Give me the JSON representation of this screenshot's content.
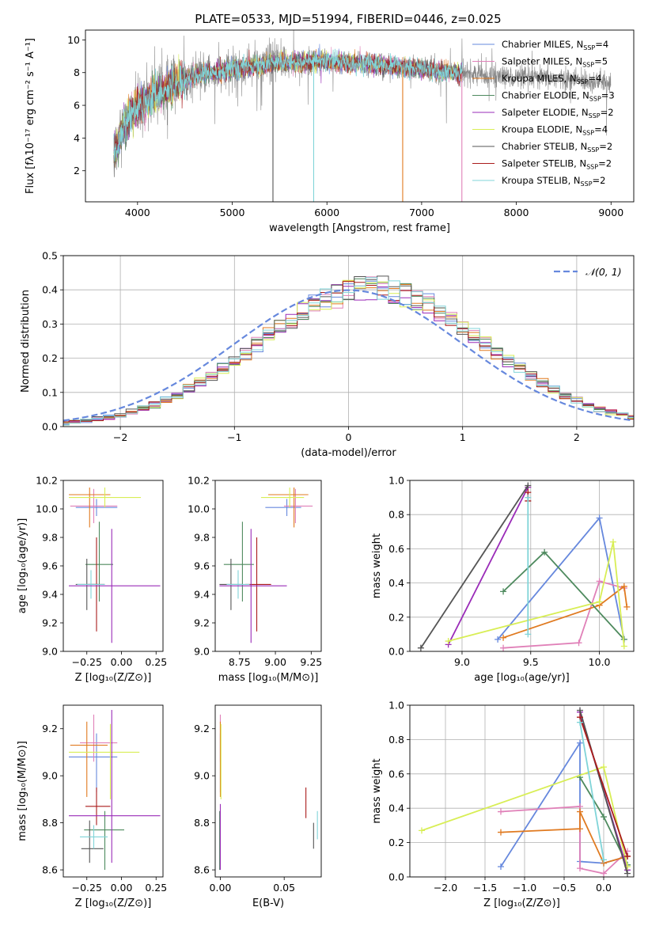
{
  "figure": {
    "title": "PLATE=0533, MJD=51994, FIBERID=0446, z=0.025"
  },
  "colors": {
    "Chabrier MILES": "#6688dd",
    "Salpeter MILES": "#e080b8",
    "Kroupa MILES": "#e07a20",
    "Chabrier ELODIE": "#4e8a5e",
    "Salpeter ELODIE": "#9a2bb8",
    "Kroupa ELODIE": "#d8ee55",
    "Chabrier STELIB": "#555555",
    "Salpeter STELIB": "#aa1c1c",
    "Kroupa STELIB": "#80d4d8",
    "gauss": "#6688dd",
    "observed_spectrum": "#888888",
    "grid": "#b0b0b0"
  },
  "chart_data": [
    {
      "id": "spectrum",
      "type": "line",
      "xlabel": "wavelength [Angstrom, rest frame]",
      "ylabel": "Flux [fλ10⁻¹⁷ erg cm⁻² s⁻¹ A⁻¹]",
      "xlim": [
        3450,
        9240
      ],
      "ylim": [
        0.1,
        10.6
      ],
      "xticks": [
        4000,
        5000,
        6000,
        7000,
        8000,
        9000
      ],
      "yticks": [
        2,
        4,
        6,
        8,
        10
      ],
      "grid": false,
      "legend_position": "top-right",
      "legend": [
        {
          "model": "Chabrier MILES",
          "nssp": "4"
        },
        {
          "model": "Salpeter MILES",
          "nssp": "5"
        },
        {
          "model": "Kroupa MILES",
          "nssp": "4"
        },
        {
          "model": "Chabrier ELODIE",
          "nssp": "3"
        },
        {
          "model": "Salpeter ELODIE",
          "nssp": "2"
        },
        {
          "model": "Kroupa ELODIE",
          "nssp": "4"
        },
        {
          "model": "Chabrier STELIB",
          "nssp": "2"
        },
        {
          "model": "Salpeter STELIB",
          "nssp": "2"
        },
        {
          "model": "Kroupa STELIB",
          "nssp": "2"
        }
      ],
      "continuum": [
        [
          3750,
          3.0
        ],
        [
          3850,
          4.6
        ],
        [
          3950,
          5.6
        ],
        [
          4100,
          6.4
        ],
        [
          4300,
          7.0
        ],
        [
          4500,
          7.6
        ],
        [
          4700,
          7.9
        ],
        [
          5000,
          8.2
        ],
        [
          5500,
          8.6
        ],
        [
          6000,
          8.7
        ],
        [
          6500,
          8.5
        ],
        [
          7000,
          8.2
        ],
        [
          7500,
          7.9
        ],
        [
          8000,
          7.7
        ],
        [
          8500,
          7.6
        ],
        [
          9000,
          7.4
        ]
      ],
      "model_range": [
        3750,
        7430
      ],
      "drops": [
        {
          "x": 5430,
          "series": "Chabrier STELIB"
        },
        {
          "x": 5860,
          "series": "Kroupa STELIB"
        },
        {
          "x": 6800,
          "series": "Kroupa MILES"
        },
        {
          "x": 7425,
          "series": "Salpeter MILES"
        }
      ]
    },
    {
      "id": "residuals",
      "type": "histogram",
      "xlabel": "(data-model)/error",
      "ylabel": "Normed distribution",
      "xlim": [
        -2.5,
        2.5
      ],
      "ylim": [
        0,
        0.5
      ],
      "xticks": [
        -2,
        -1,
        0,
        1,
        2
      ],
      "yticks": [
        0,
        0.1,
        0.2,
        0.3,
        0.4,
        0.5
      ],
      "grid": true,
      "legend_position": "top-right",
      "reference_curve": {
        "label": "𝒩(0, 1)",
        "mu": 0,
        "sigma": 1
      },
      "bin_width": 0.1
    },
    {
      "id": "z-age",
      "type": "errorbar",
      "xlabel": "Z [log₁₀(Z/Z⊙)]",
      "ylabel": "age  [log₁₀(age/yr)]",
      "xlim": [
        -0.42,
        0.3
      ],
      "ylim": [
        9.0,
        10.2
      ],
      "xticks": [
        -0.25,
        0.0,
        0.25
      ],
      "yticks": [
        9.0,
        9.2,
        9.4,
        9.6,
        9.8,
        10.0,
        10.2
      ],
      "points": [
        {
          "series": "Chabrier MILES",
          "x": -0.18,
          "xerr": [
            0.15,
            0.15
          ],
          "y": 10.01,
          "yerr": [
            0.06,
            0.06
          ]
        },
        {
          "series": "Salpeter MILES",
          "x": -0.2,
          "xerr": [
            0.17,
            0.17
          ],
          "y": 10.02,
          "yerr": [
            0.12,
            0.12
          ]
        },
        {
          "series": "Kroupa MILES",
          "x": -0.23,
          "xerr": [
            0.15,
            0.15
          ],
          "y": 10.1,
          "yerr": [
            0.23,
            0.05
          ]
        },
        {
          "series": "Kroupa ELODIE",
          "x": -0.12,
          "xerr": [
            0.26,
            0.26
          ],
          "y": 10.08,
          "yerr": [
            0.07,
            0.07
          ]
        },
        {
          "series": "Chabrier ELODIE",
          "x": -0.16,
          "xerr": [
            0.1,
            0.1
          ],
          "y": 9.61,
          "yerr": [
            0.26,
            0.3
          ]
        },
        {
          "series": "Salpeter STELIB",
          "x": -0.18,
          "xerr": [
            0.06,
            0.06
          ],
          "y": 9.47,
          "yerr": [
            0.33,
            0.33
          ]
        },
        {
          "series": "Chabrier STELIB",
          "x": -0.25,
          "xerr": [
            0.08,
            0.08
          ],
          "y": 9.47,
          "yerr": [
            0.18,
            0.18
          ]
        },
        {
          "series": "Kroupa STELIB",
          "x": -0.22,
          "xerr": [
            0.1,
            0.1
          ],
          "y": 9.47,
          "yerr": [
            0.1,
            0.1
          ]
        },
        {
          "series": "Salpeter ELODIE",
          "x": -0.07,
          "xerr": [
            0.31,
            0.35
          ],
          "y": 9.46,
          "yerr": [
            0.4,
            0.4
          ]
        }
      ]
    },
    {
      "id": "mass-age",
      "type": "errorbar",
      "xlabel": "mass [log₁₀(M/M⊙)]",
      "ylabel": "",
      "xlim": [
        8.58,
        9.32
      ],
      "ylim": [
        9.0,
        10.2
      ],
      "xticks": [
        8.75,
        9.0,
        9.25
      ],
      "yticks": [
        9.0,
        9.2,
        9.4,
        9.6,
        9.8,
        10.0,
        10.2
      ],
      "points": [
        {
          "series": "Chabrier MILES",
          "x": 9.08,
          "xerr": [
            0.15,
            0.1
          ],
          "y": 10.01,
          "yerr": [
            0.06,
            0.06
          ]
        },
        {
          "series": "Salpeter MILES",
          "x": 9.14,
          "xerr": [
            0.08,
            0.12
          ],
          "y": 10.02,
          "yerr": [
            0.12,
            0.12
          ]
        },
        {
          "series": "Kroupa MILES",
          "x": 9.13,
          "xerr": [
            0.18,
            0.1
          ],
          "y": 10.1,
          "yerr": [
            0.23,
            0.05
          ]
        },
        {
          "series": "Kroupa ELODIE",
          "x": 9.1,
          "xerr": [
            0.2,
            0.1
          ],
          "y": 10.08,
          "yerr": [
            0.07,
            0.07
          ]
        },
        {
          "series": "Chabrier ELODIE",
          "x": 8.77,
          "xerr": [
            0.13,
            0.08
          ],
          "y": 9.61,
          "yerr": [
            0.26,
            0.3
          ]
        },
        {
          "series": "Salpeter STELIB",
          "x": 8.87,
          "xerr": [
            0.08,
            0.1
          ],
          "y": 9.47,
          "yerr": [
            0.33,
            0.33
          ]
        },
        {
          "series": "Chabrier STELIB",
          "x": 8.69,
          "xerr": [
            0.08,
            0.08
          ],
          "y": 9.47,
          "yerr": [
            0.18,
            0.18
          ]
        },
        {
          "series": "Kroupa STELIB",
          "x": 8.74,
          "xerr": [
            0.08,
            0.08
          ],
          "y": 9.47,
          "yerr": [
            0.1,
            0.1
          ]
        },
        {
          "series": "Salpeter ELODIE",
          "x": 8.83,
          "xerr": [
            0.22,
            0.25
          ],
          "y": 9.46,
          "yerr": [
            0.4,
            0.4
          ]
        }
      ]
    },
    {
      "id": "age-weight",
      "type": "line",
      "xlabel": "age  [log₁₀(age/yr)]",
      "ylabel": "mass weight",
      "xlim": [
        8.62,
        10.25
      ],
      "ylim": [
        0,
        1.0
      ],
      "xticks": [
        9.0,
        9.5,
        10.0
      ],
      "yticks": [
        0.0,
        0.2,
        0.4,
        0.6,
        0.8,
        1.0
      ],
      "grid": true,
      "series": [
        {
          "name": "Chabrier MILES",
          "points": [
            [
              9.26,
              0.07
            ],
            [
              10.0,
              0.78
            ],
            [
              10.18,
              0.07
            ]
          ]
        },
        {
          "name": "Salpeter MILES",
          "points": [
            [
              9.3,
              0.02
            ],
            [
              9.85,
              0.05
            ],
            [
              10.0,
              0.41
            ],
            [
              10.18,
              0.37
            ]
          ]
        },
        {
          "name": "Kroupa MILES",
          "points": [
            [
              9.3,
              0.08
            ],
            [
              10.0,
              0.27
            ],
            [
              10.18,
              0.38
            ],
            [
              10.2,
              0.26
            ]
          ]
        },
        {
          "name": "Chabrier ELODIE",
          "points": [
            [
              9.3,
              0.35
            ],
            [
              9.6,
              0.58
            ],
            [
              10.18,
              0.07
            ]
          ]
        },
        {
          "name": "Salpeter ELODIE",
          "points": [
            [
              8.9,
              0.04
            ],
            [
              9.48,
              0.96
            ]
          ]
        },
        {
          "name": "Kroupa ELODIE",
          "points": [
            [
              8.9,
              0.06
            ],
            [
              10.0,
              0.29
            ],
            [
              10.1,
              0.64
            ],
            [
              10.18,
              0.03
            ]
          ]
        },
        {
          "name": "Chabrier STELIB",
          "points": [
            [
              8.7,
              0.02
            ],
            [
              9.48,
              0.97
            ]
          ]
        },
        {
          "name": "Salpeter STELIB",
          "points": [
            [
              9.48,
              0.93
            ],
            [
              9.48,
              0.88
            ]
          ]
        },
        {
          "name": "Kroupa STELIB",
          "points": [
            [
              9.48,
              0.1
            ],
            [
              9.48,
              0.9
            ]
          ]
        }
      ]
    },
    {
      "id": "z-mass",
      "type": "errorbar",
      "xlabel": "Z [log₁₀(Z/Z⊙)]",
      "ylabel": "mass [log₁₀(M/M⊙)]",
      "xlim": [
        -0.42,
        0.3
      ],
      "ylim": [
        8.57,
        9.3
      ],
      "xticks": [
        -0.25,
        0.0,
        0.25
      ],
      "yticks": [
        8.6,
        8.8,
        9.0,
        9.2
      ],
      "points": [
        {
          "series": "Chabrier MILES",
          "x": -0.18,
          "xerr": [
            0.2,
            0.15
          ],
          "y": 9.08,
          "yerr": [
            0.15,
            0.1
          ]
        },
        {
          "series": "Salpeter MILES",
          "x": -0.2,
          "xerr": [
            0.1,
            0.17
          ],
          "y": 9.14,
          "yerr": [
            0.08,
            0.12
          ]
        },
        {
          "series": "Kroupa MILES",
          "x": -0.25,
          "xerr": [
            0.12,
            0.15
          ],
          "y": 9.13,
          "yerr": [
            0.22,
            0.1
          ]
        },
        {
          "series": "Kroupa ELODIE",
          "x": -0.08,
          "xerr": [
            0.3,
            0.21
          ],
          "y": 9.1,
          "yerr": [
            0.2,
            0.12
          ]
        },
        {
          "series": "Chabrier ELODIE",
          "x": -0.12,
          "xerr": [
            0.15,
            0.14
          ],
          "y": 8.77,
          "yerr": [
            0.17,
            0.08
          ]
        },
        {
          "series": "Salpeter STELIB",
          "x": -0.18,
          "xerr": [
            0.08,
            0.1
          ],
          "y": 8.87,
          "yerr": [
            0.08,
            0.08
          ]
        },
        {
          "series": "Chabrier STELIB",
          "x": -0.23,
          "xerr": [
            0.06,
            0.1
          ],
          "y": 8.69,
          "yerr": [
            0.06,
            0.12
          ]
        },
        {
          "series": "Kroupa STELIB",
          "x": -0.2,
          "xerr": [
            0.1,
            0.1
          ],
          "y": 8.74,
          "yerr": [
            0.05,
            0.05
          ]
        },
        {
          "series": "Salpeter ELODIE",
          "x": -0.07,
          "xerr": [
            0.31,
            0.35
          ],
          "y": 8.83,
          "yerr": [
            0.2,
            0.45
          ]
        }
      ]
    },
    {
      "id": "ebv-mass",
      "type": "errorbar",
      "xlabel": "E(B-V)",
      "ylabel": "",
      "xlim": [
        -0.004,
        0.079
      ],
      "ylim": [
        8.57,
        9.3
      ],
      "xticks": [
        0.0,
        0.05
      ],
      "yticks": [
        8.6,
        8.8,
        9.0,
        9.2
      ],
      "points": [
        {
          "series": "Chabrier MILES",
          "x": 0.0,
          "xerr": [
            0,
            0
          ],
          "y": 9.08,
          "yerr": [
            0.15,
            0.1
          ]
        },
        {
          "series": "Salpeter MILES",
          "x": 0.0,
          "xerr": [
            0,
            0
          ],
          "y": 9.14,
          "yerr": [
            0.08,
            0.12
          ]
        },
        {
          "series": "Kroupa MILES",
          "x": 0.0,
          "xerr": [
            0,
            0
          ],
          "y": 9.13,
          "yerr": [
            0.22,
            0.1
          ]
        },
        {
          "series": "Kroupa ELODIE",
          "x": 0.0005,
          "xerr": [
            0,
            0
          ],
          "y": 9.1,
          "yerr": [
            0.2,
            0.12
          ]
        },
        {
          "series": "Chabrier ELODIE",
          "x": -0.0005,
          "xerr": [
            0,
            0
          ],
          "y": 8.77,
          "yerr": [
            0.17,
            0.08
          ]
        },
        {
          "series": "Salpeter ELODIE",
          "x": 0.0,
          "xerr": [
            0,
            0
          ],
          "y": 8.75,
          "yerr": [
            0.15,
            0.13
          ]
        },
        {
          "series": "Salpeter STELIB",
          "x": 0.067,
          "xerr": [
            0,
            0
          ],
          "y": 8.87,
          "yerr": [
            0.05,
            0.08
          ]
        },
        {
          "series": "Chabrier STELIB",
          "x": 0.073,
          "xerr": [
            0,
            0
          ],
          "y": 8.75,
          "yerr": [
            0.06,
            0.05
          ]
        },
        {
          "series": "Kroupa STELIB",
          "x": 0.076,
          "xerr": [
            0,
            0
          ],
          "y": 8.79,
          "yerr": [
            0.06,
            0.06
          ]
        }
      ]
    },
    {
      "id": "z-weight",
      "type": "line",
      "xlabel": "Z [log₁₀(Z/Z⊙)]",
      "ylabel": "mass weight",
      "xlim": [
        -2.45,
        0.38
      ],
      "ylim": [
        0,
        1.0
      ],
      "xticks": [
        -2.0,
        -1.5,
        -1.0,
        -0.5,
        0.0
      ],
      "yticks": [
        0.0,
        0.2,
        0.4,
        0.6,
        0.8,
        1.0
      ],
      "grid": true,
      "series": [
        {
          "name": "Chabrier MILES",
          "points": [
            [
              -1.3,
              0.06
            ],
            [
              -0.3,
              0.78
            ],
            [
              -0.3,
              0.09
            ],
            [
              0.0,
              0.08
            ],
            [
              0.3,
              0.12
            ]
          ]
        },
        {
          "name": "Salpeter MILES",
          "points": [
            [
              -1.3,
              0.38
            ],
            [
              -0.3,
              0.41
            ],
            [
              -0.3,
              0.05
            ],
            [
              0.0,
              0.02
            ],
            [
              0.3,
              0.15
            ]
          ]
        },
        {
          "name": "Kroupa MILES",
          "points": [
            [
              -1.3,
              0.26
            ],
            [
              -0.3,
              0.28
            ],
            [
              -0.3,
              0.38
            ],
            [
              0.0,
              0.08
            ],
            [
              0.3,
              0.12
            ]
          ]
        },
        {
          "name": "Chabrier ELODIE",
          "points": [
            [
              -0.3,
              0.58
            ],
            [
              0.0,
              0.35
            ],
            [
              0.3,
              0.07
            ]
          ]
        },
        {
          "name": "Salpeter ELODIE",
          "points": [
            [
              -0.3,
              0.96
            ],
            [
              0.3,
              0.04
            ]
          ]
        },
        {
          "name": "Kroupa ELODIE",
          "points": [
            [
              -2.3,
              0.27
            ],
            [
              0.0,
              0.64
            ],
            [
              0.3,
              0.06
            ]
          ]
        },
        {
          "name": "Chabrier STELIB",
          "points": [
            [
              -0.3,
              0.97
            ],
            [
              0.3,
              0.02
            ]
          ]
        },
        {
          "name": "Salpeter STELIB",
          "points": [
            [
              -0.3,
              0.93
            ],
            [
              0.3,
              0.12
            ]
          ]
        },
        {
          "name": "Kroupa STELIB",
          "points": [
            [
              -0.3,
              0.9
            ],
            [
              0.0,
              0.1
            ]
          ]
        }
      ]
    }
  ]
}
